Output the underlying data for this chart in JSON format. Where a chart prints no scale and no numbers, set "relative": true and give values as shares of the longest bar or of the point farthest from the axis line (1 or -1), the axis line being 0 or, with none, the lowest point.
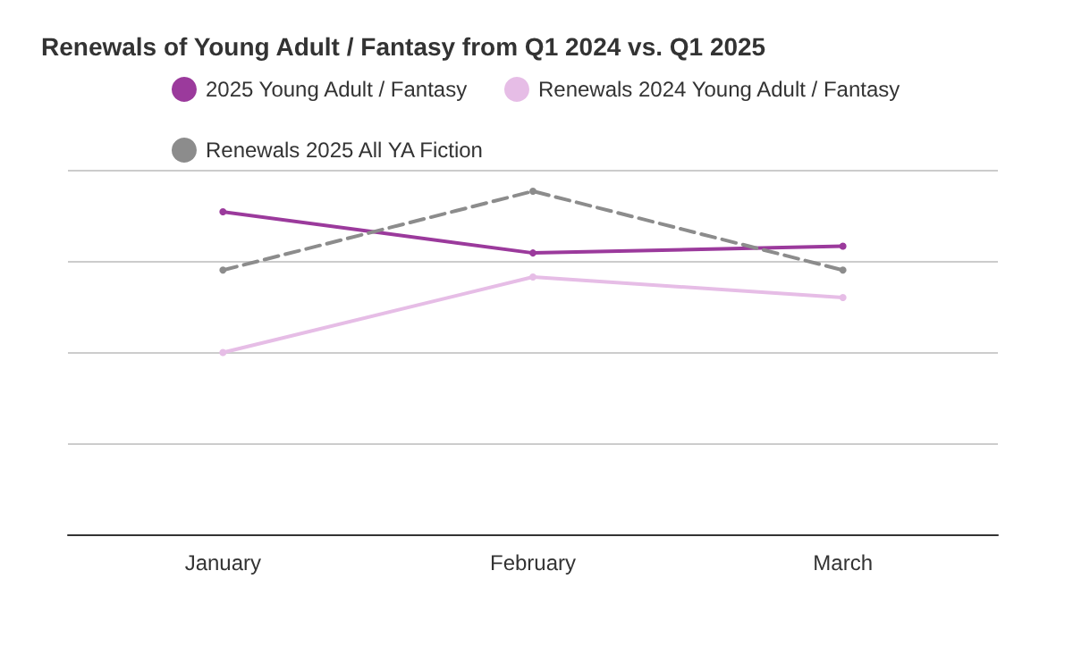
{
  "chart_data": {
    "type": "line",
    "title": "Renewals of Young Adult / Fantasy from Q1 2024 vs. Q1 2025",
    "categories": [
      "January",
      "February",
      "March"
    ],
    "series": [
      {
        "name": "2025 Young Adult / Fantasy",
        "color": "#9b3a9c",
        "values": [
          0.94,
          0.82,
          0.84
        ]
      },
      {
        "name": "Renewals 2024 Young Adult / Fantasy",
        "color": "#e6bde6",
        "values": [
          0.53,
          0.75,
          0.69
        ]
      },
      {
        "name": "Renewals 2025 All YA Fiction",
        "color": "#8c8c8c",
        "values": [
          0.77,
          1,
          0.77
        ],
        "line_style": "dashed"
      }
    ],
    "relative": true,
    "grid": "y",
    "legend": "top",
    "marker": "circle"
  }
}
